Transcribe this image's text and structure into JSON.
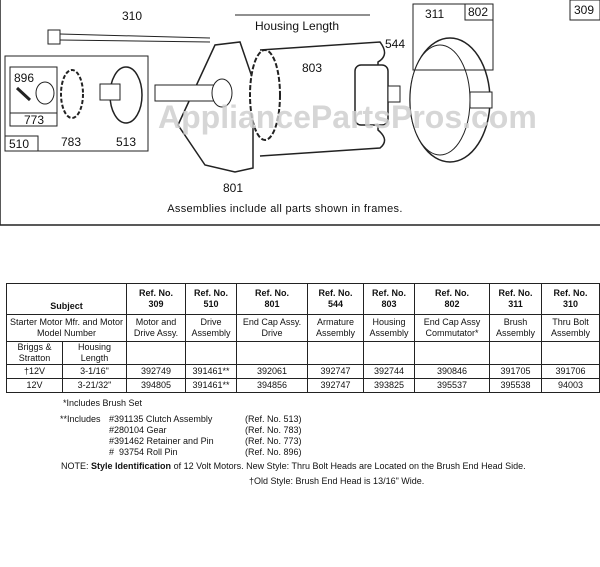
{
  "watermark": "AppliancePartsPros.com",
  "diagram": {
    "ref_labels": [
      "310",
      "896",
      "773",
      "510",
      "783",
      "513",
      "801",
      "803",
      "544",
      "311",
      "802",
      "309"
    ],
    "housing_label": "Housing Length",
    "caption": "Assemblies include all parts shown in frames."
  },
  "table": {
    "subject_header": "Subject",
    "ref_headers": [
      {
        "label": "Ref. No.",
        "num": "309"
      },
      {
        "label": "Ref. No.",
        "num": "510"
      },
      {
        "label": "Ref. No.",
        "num": "801"
      },
      {
        "label": "Ref. No.",
        "num": "544"
      },
      {
        "label": "Ref. No.",
        "num": "803"
      },
      {
        "label": "Ref. No.",
        "num": "802"
      },
      {
        "label": "Ref. No.",
        "num": "311"
      },
      {
        "label": "Ref. No.",
        "num": "310"
      }
    ],
    "subject_desc": "Starter Motor Mfr. and Motor Model Number",
    "descriptions": [
      "Motor and Drive Assy.",
      "Drive Assembly",
      "End Cap Assy. Drive",
      "Armature Assembly",
      "Housing Assembly",
      "End Cap Assy Commutator*",
      "Brush Assembly",
      "Thru Bolt Assembly"
    ],
    "sub_headers": [
      "Briggs & Stratton",
      "Housing Length"
    ],
    "rows": [
      {
        "model": "†12V",
        "length": "3-1/16\"",
        "values": [
          "392749",
          "391461**",
          "392061",
          "392747",
          "392744",
          "390846",
          "391705",
          "391706"
        ]
      },
      {
        "model": "12V",
        "length": "3-21/32\"",
        "values": [
          "394805",
          "391461**",
          "394856",
          "392747",
          "393825",
          "395537",
          "395538",
          "94003"
        ]
      }
    ]
  },
  "footnotes": {
    "brush": "*Includes Brush Set",
    "includes_prefix": "**Includes",
    "items": [
      {
        "part": "#391135 Clutch Assembly",
        "ref": "(Ref. No. 513)"
      },
      {
        "part": "#280104 Gear",
        "ref": "(Ref. No. 783)"
      },
      {
        "part": "#391462 Retainer and Pin",
        "ref": "(Ref. No. 773)"
      },
      {
        "part": "#  93754 Roll Pin",
        "ref": "(Ref. No. 896)"
      }
    ],
    "note_prefix": "NOTE:",
    "note_bold": "Style Identification",
    "note_text": "of 12 Volt Motors. New Style: Thru Bolt Heads are Located on the Brush End Head Side.",
    "note_line2": "†Old Style: Brush End Head is 13/16\" Wide."
  }
}
